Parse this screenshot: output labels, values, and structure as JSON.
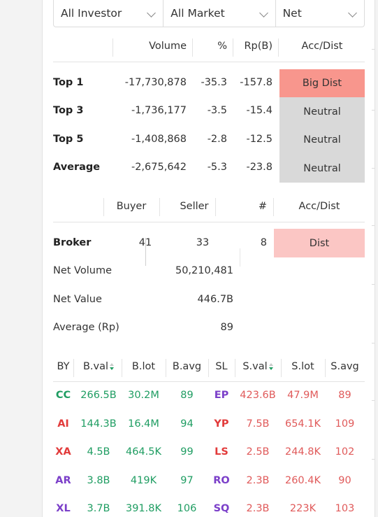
{
  "filters": {
    "investor": "All Investor",
    "market": "All Market",
    "mode": "Net"
  },
  "summary": {
    "headers": {
      "volume": "Volume",
      "pct": "%",
      "rp": "Rp(B)",
      "accdist": "Acc/Dist"
    },
    "rows": [
      {
        "label": "Top 1",
        "volume": "-17,730,878",
        "pct": "-35.3",
        "rp": "-157.8",
        "accdist": "Big Dist",
        "color": "#f8968d"
      },
      {
        "label": "Top 3",
        "volume": "-1,736,177",
        "pct": "-3.5",
        "rp": "-15.4",
        "accdist": "Neutral",
        "color": "#d9d9d9"
      },
      {
        "label": "Top 5",
        "volume": "-1,408,868",
        "pct": "-2.8",
        "rp": "-12.5",
        "accdist": "Neutral",
        "color": "#d9d9d9"
      },
      {
        "label": "Average",
        "volume": "-2,675,642",
        "pct": "-5.3",
        "rp": "-23.8",
        "accdist": "Neutral",
        "color": "#d9d9d9"
      }
    ]
  },
  "broker": {
    "headers": {
      "buyer": "Buyer",
      "seller": "Seller",
      "count": "#",
      "accdist": "Acc/Dist"
    },
    "label": "Broker",
    "buyer": "41",
    "seller": "33",
    "count": "8",
    "accdist": "Dist",
    "accdist_color": "#fbc6c4",
    "net_volume_label": "Net Volume",
    "net_volume": "50,210,481",
    "net_value_label": "Net Value",
    "net_value": "446.7B",
    "avg_label": "Average (Rp)",
    "avg": "89"
  },
  "trades": {
    "headers": {
      "by": "BY",
      "bval": "B.val",
      "blot": "B.lot",
      "bavg": "B.avg",
      "sl": "SL",
      "sval": "S.val",
      "slot": "S.lot",
      "savg": "S.avg"
    },
    "rows": [
      {
        "by": "CC",
        "by_color": "#1f9d62",
        "bval": "266.5B",
        "blot": "30.2M",
        "bavg": "89",
        "sl": "EP",
        "sl_color": "#7b3fc9",
        "sval": "423.6B",
        "slot": "47.9M",
        "savg": "89"
      },
      {
        "by": "AI",
        "by_color": "#e23b3b",
        "bval": "144.3B",
        "blot": "16.4M",
        "bavg": "94",
        "sl": "YP",
        "sl_color": "#e23b3b",
        "sval": "7.5B",
        "slot": "654.1K",
        "savg": "109"
      },
      {
        "by": "XA",
        "by_color": "#e23b3b",
        "bval": "4.5B",
        "blot": "464.5K",
        "bavg": "99",
        "sl": "LS",
        "sl_color": "#e23b3b",
        "sval": "2.5B",
        "slot": "244.8K",
        "savg": "102"
      },
      {
        "by": "AR",
        "by_color": "#7b3fc9",
        "bval": "3.8B",
        "blot": "419K",
        "bavg": "97",
        "sl": "RO",
        "sl_color": "#7b3fc9",
        "sval": "2.3B",
        "slot": "260.4K",
        "savg": "90"
      },
      {
        "by": "XL",
        "by_color": "#7b3fc9",
        "bval": "3.7B",
        "blot": "391.8K",
        "bavg": "106",
        "sl": "SQ",
        "sl_color": "#7b3fc9",
        "sval": "2.3B",
        "slot": "223K",
        "savg": "103"
      }
    ]
  }
}
